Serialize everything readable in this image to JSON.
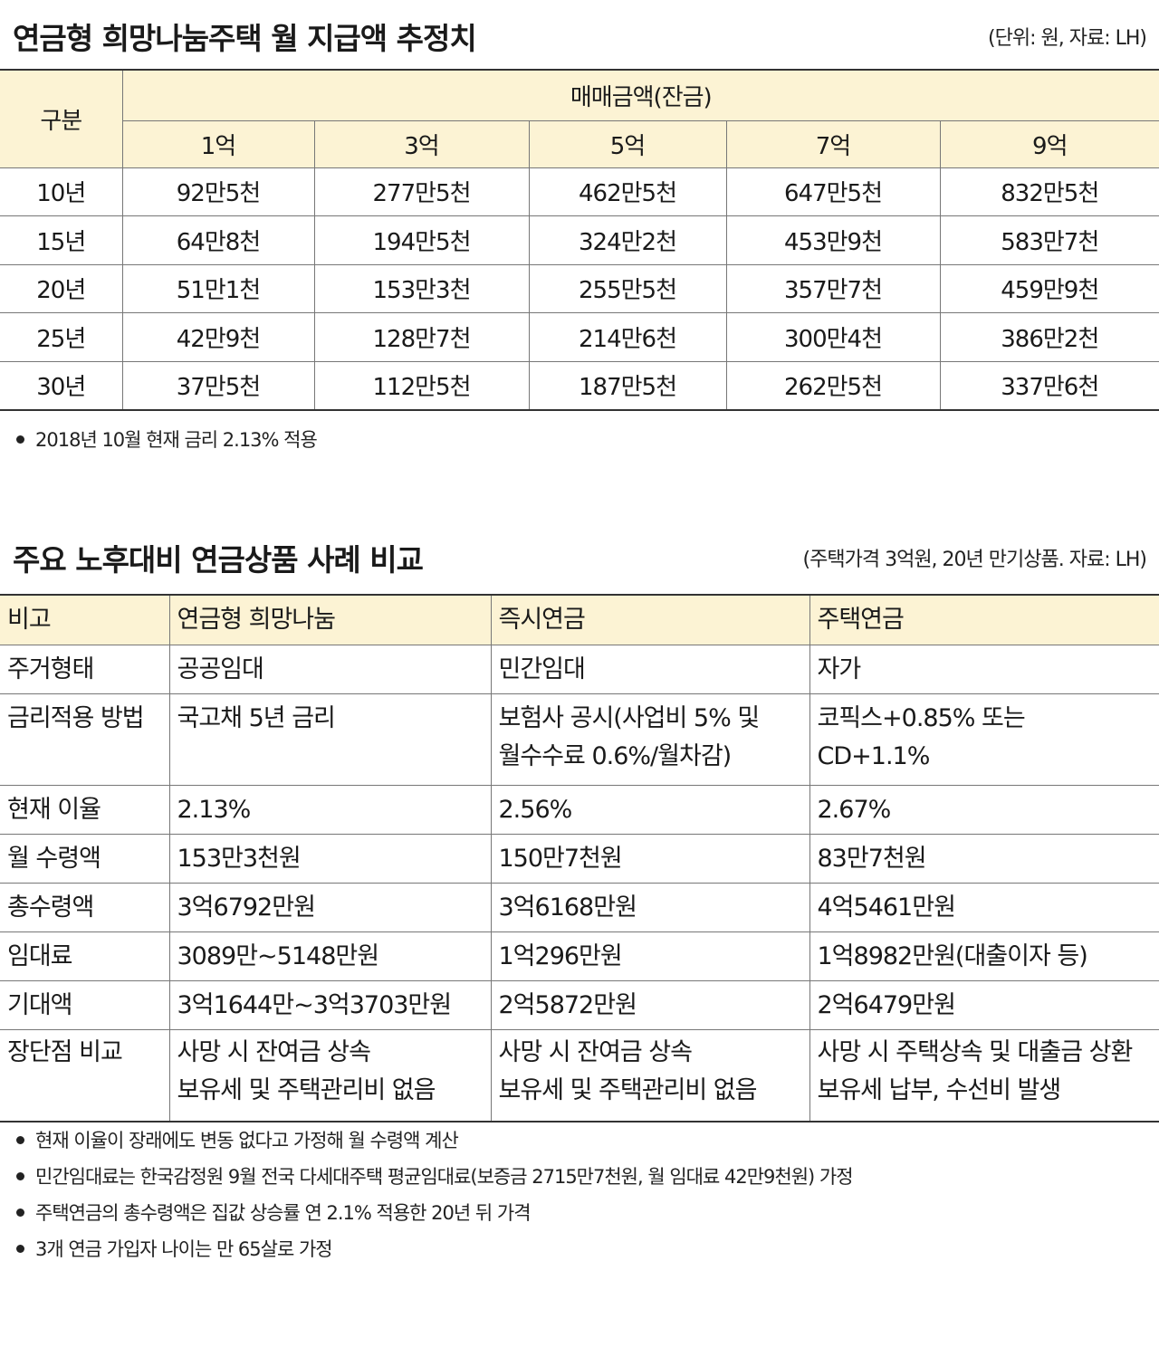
{
  "section1": {
    "title": "연금형 희망나눔주택 월 지급액 추정치",
    "source": "(단위: 원, 자료: LH)",
    "corner": "구분",
    "group_header": "매매금액(잔금)",
    "columns": [
      "1억",
      "3억",
      "5억",
      "7억",
      "9억"
    ],
    "rows": [
      {
        "label": "10년",
        "values": [
          "92만5천",
          "277만5천",
          "462만5천",
          "647만5천",
          "832만5천"
        ]
      },
      {
        "label": "15년",
        "values": [
          "64만8천",
          "194만5천",
          "324만2천",
          "453만9천",
          "583만7천"
        ]
      },
      {
        "label": "20년",
        "values": [
          "51만1천",
          "153만3천",
          "255만5천",
          "357만7천",
          "459만9천"
        ]
      },
      {
        "label": "25년",
        "values": [
          "42만9천",
          "128만7천",
          "214만6천",
          "300만4천",
          "386만2천"
        ]
      },
      {
        "label": "30년",
        "values": [
          "37만5천",
          "112만5천",
          "187만5천",
          "262만5천",
          "337만6천"
        ]
      }
    ],
    "notes": [
      "2018년 10월 현재 금리 2.13% 적용"
    ]
  },
  "section2": {
    "title": "주요 노후대비 연금상품 사례 비교",
    "source": "(주택가격 3억원, 20년 만기상품. 자료: LH)",
    "headers": [
      "비고",
      "연금형 희망나눔",
      "즉시연금",
      "주택연금"
    ],
    "rows": [
      {
        "label": "주거형태",
        "values": [
          [
            "공공임대"
          ],
          [
            "민간임대"
          ],
          [
            "자가"
          ]
        ]
      },
      {
        "label": "금리적용 방법",
        "values": [
          [
            "국고채 5년 금리"
          ],
          [
            "보험사 공시(사업비 5% 및",
            "월수수료 0.6%/월차감)"
          ],
          [
            "코픽스+0.85% 또는",
            "CD+1.1%"
          ]
        ]
      },
      {
        "label": "현재 이율",
        "values": [
          [
            "2.13%"
          ],
          [
            "2.56%"
          ],
          [
            "2.67%"
          ]
        ]
      },
      {
        "label": "월 수령액",
        "values": [
          [
            "153만3천원"
          ],
          [
            "150만7천원"
          ],
          [
            "83만7천원"
          ]
        ]
      },
      {
        "label": "총수령액",
        "values": [
          [
            "3억6792만원"
          ],
          [
            "3억6168만원"
          ],
          [
            "4억5461만원"
          ]
        ]
      },
      {
        "label": "임대료",
        "values": [
          [
            "3089만~5148만원"
          ],
          [
            "1억296만원"
          ],
          [
            "1억8982만원(대출이자 등)"
          ]
        ]
      },
      {
        "label": "기대액",
        "values": [
          [
            "3억1644만~3억3703만원"
          ],
          [
            "2억5872만원"
          ],
          [
            "2억6479만원"
          ]
        ]
      },
      {
        "label": "장단점 비교",
        "values": [
          [
            "사망 시 잔여금 상속",
            "보유세 및 주택관리비 없음"
          ],
          [
            "사망 시 잔여금 상속",
            "보유세 및 주택관리비 없음"
          ],
          [
            "사망 시 주택상속 및 대출금 상환",
            "보유세 납부, 수선비 발생"
          ]
        ]
      }
    ],
    "notes": [
      "현재 이율이 장래에도 변동 없다고 가정해 월 수령액 계산",
      "민간임대료는 한국감정원 9월 전국 다세대주택 평균임대료(보증금 2715만7천원, 월 임대료 42만9천원) 가정",
      "주택연금의 총수령액은 집값 상승률 연 2.1% 적용한 20년 뒤 가격",
      "3개 연금 가입자 나이는 만 65살로 가정"
    ]
  },
  "colors": {
    "header_bg": "#fcf3d4",
    "rule": "#333333",
    "grid": "#777777"
  }
}
